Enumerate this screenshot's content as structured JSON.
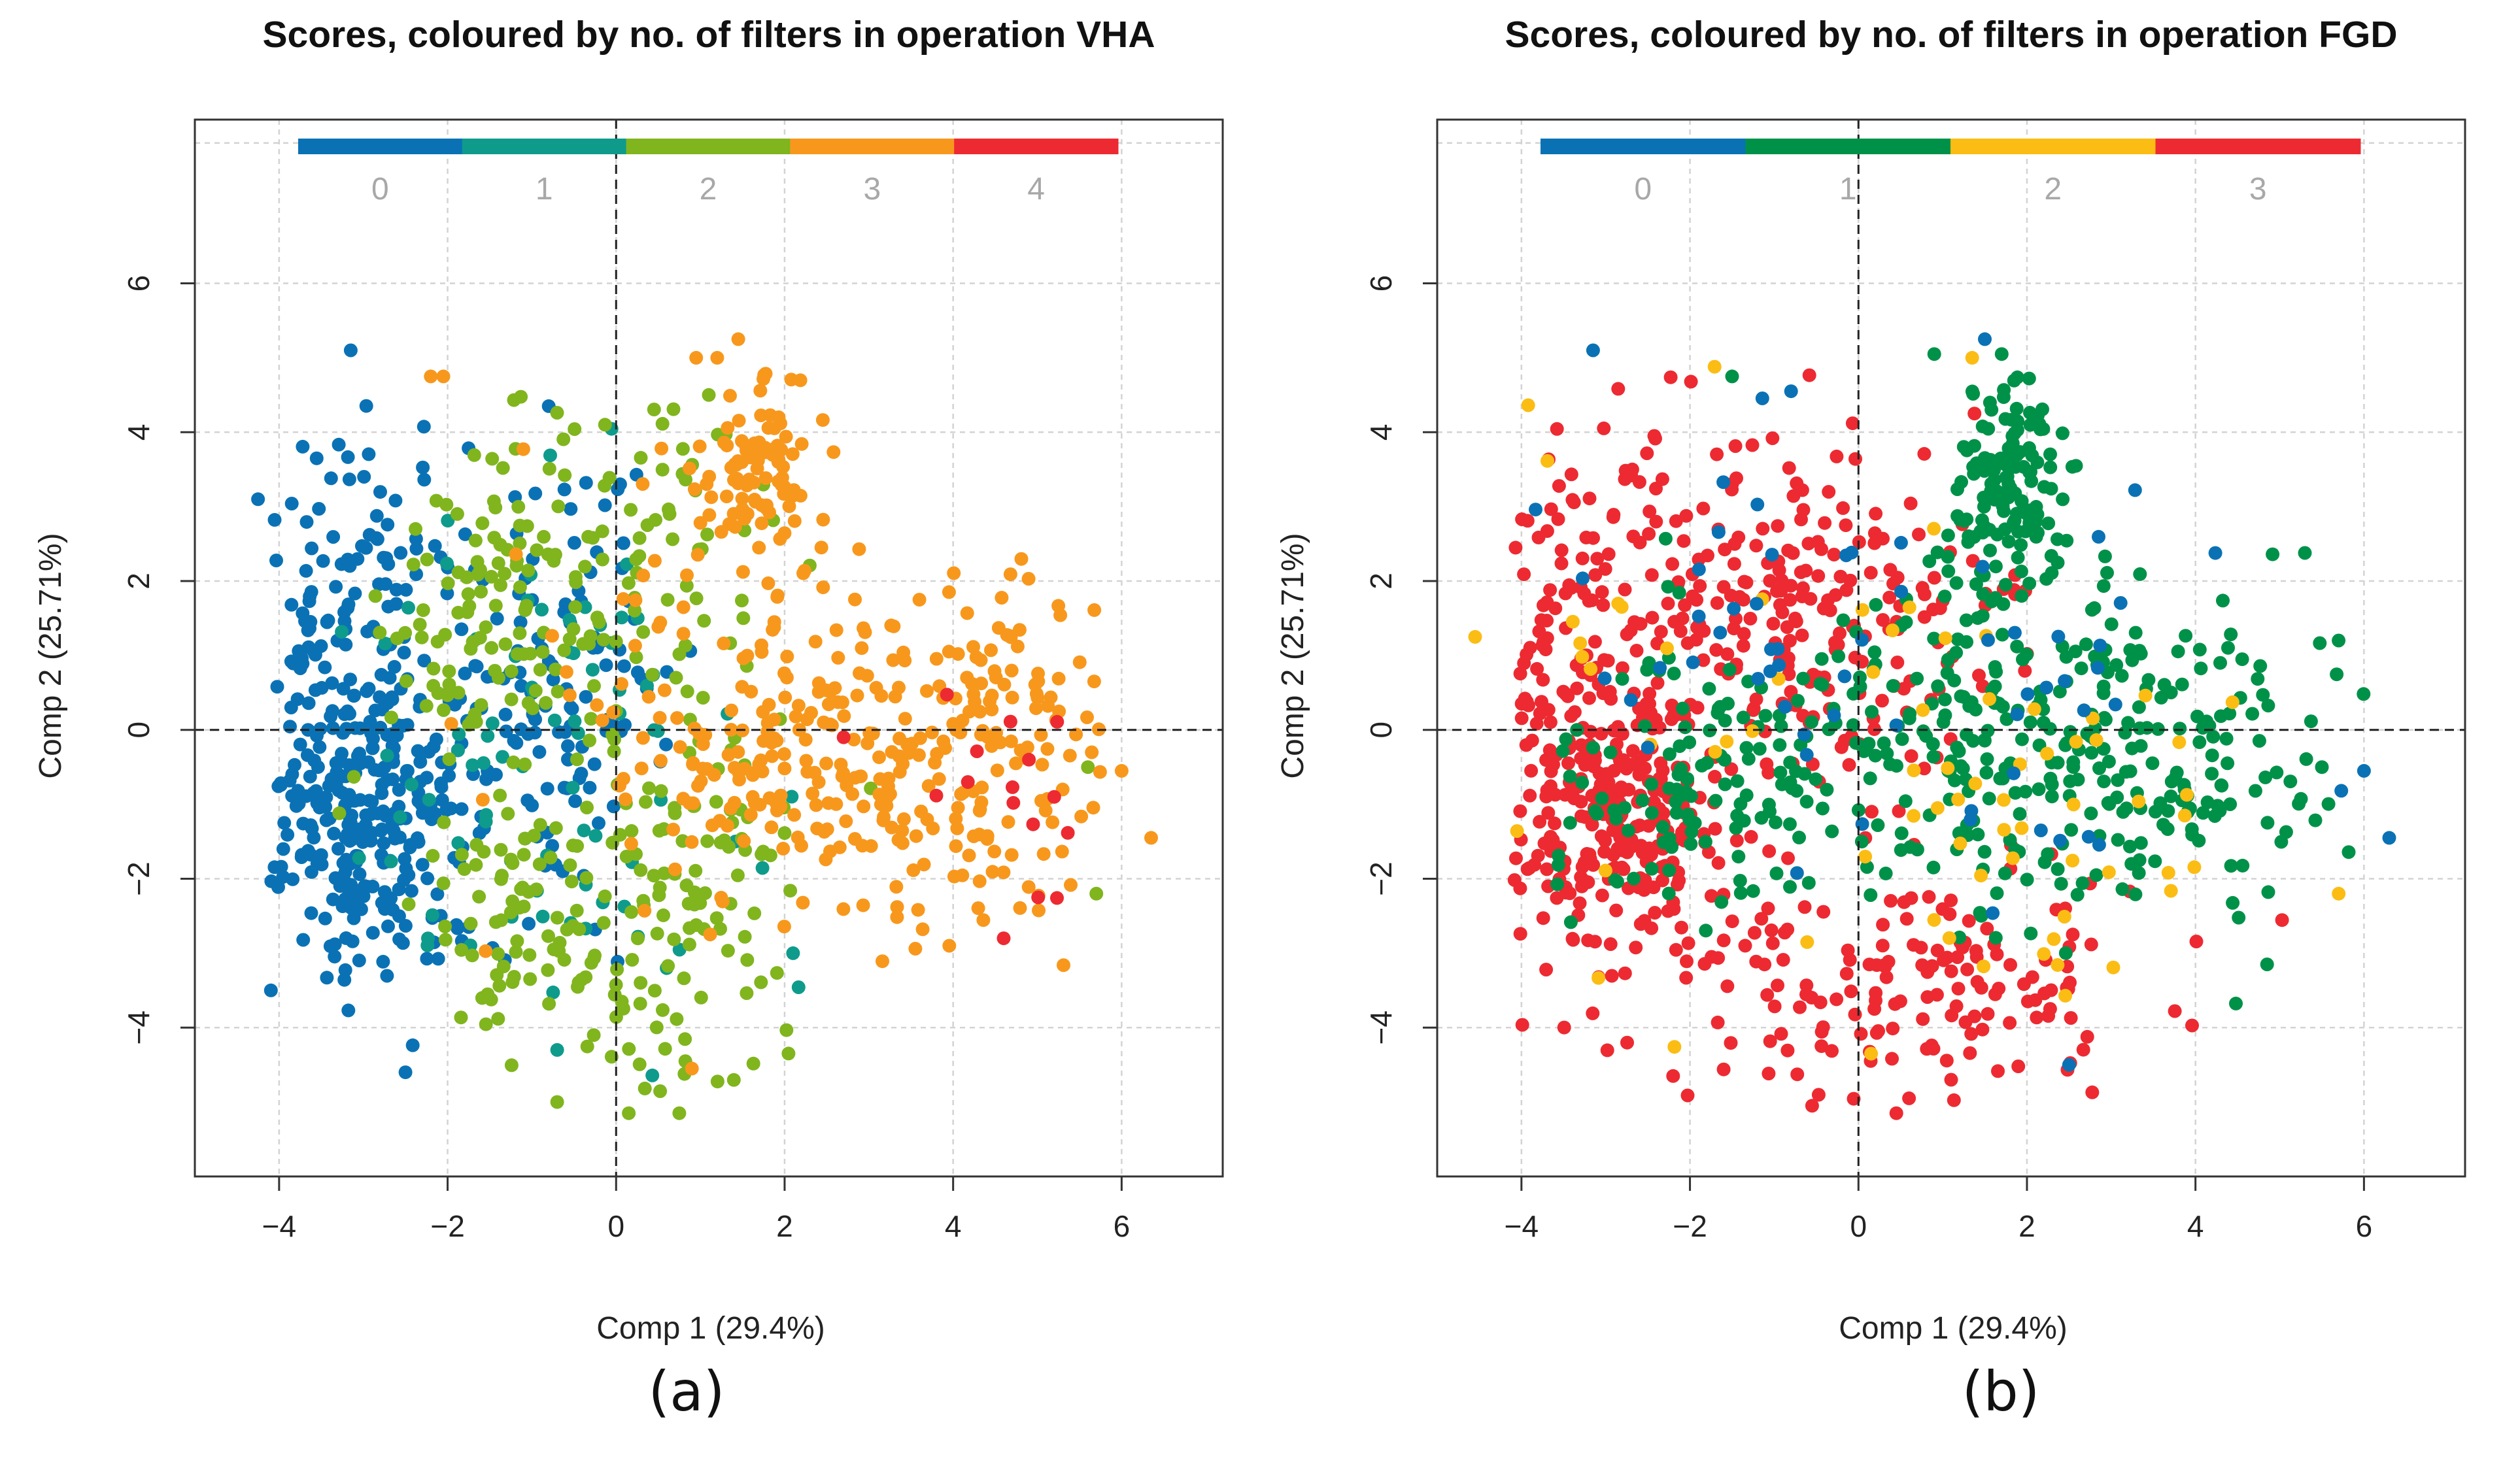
{
  "colors": {
    "blue": "#0a72b4",
    "teal": "#0e9b8c",
    "green": "#009149",
    "lime": "#80b51e",
    "orange": "#f7981d",
    "yellow": "#fbbd14",
    "red": "#ed2a31",
    "grid": "#d3d3d3",
    "axis": "#333333",
    "legend_text": "#a8a8a8"
  },
  "chart_data": [
    {
      "type": "scatter",
      "title": "Scores, coloured by no. of filters in operation VHA",
      "xlabel": "Comp 1 (29.4%)",
      "ylabel": "Comp 2 (25.71%)",
      "xlim": [
        -5.0,
        7.2
      ],
      "ylim": [
        -6.0,
        8.2
      ],
      "xticks": [
        -4,
        -2,
        0,
        2,
        4,
        6
      ],
      "yticks": [
        -4,
        -2,
        0,
        2,
        4,
        6
      ],
      "grid": true,
      "reference_lines": {
        "x": 0,
        "y": 0
      },
      "caption": "(a)",
      "legend": {
        "placement": "top",
        "entries": [
          {
            "label": "0",
            "color": "#0a72b4"
          },
          {
            "label": "1",
            "color": "#0e9b8c"
          },
          {
            "label": "2",
            "color": "#80b51e"
          },
          {
            "label": "3",
            "color": "#f7981d"
          },
          {
            "label": "4",
            "color": "#ed2a31"
          }
        ]
      },
      "series": [
        {
          "name": "0",
          "color": "#0a72b4",
          "count": 520,
          "clusters": [
            {
              "cx": -3.0,
              "cy": -1.3,
              "sx": 0.55,
              "sy": 0.9,
              "w": 0.45
            },
            {
              "cx": -3.1,
              "cy": 1.5,
              "sx": 0.55,
              "sy": 1.3,
              "w": 0.25
            },
            {
              "cx": -1.5,
              "cy": 0.2,
              "sx": 0.7,
              "sy": 1.3,
              "w": 0.18
            },
            {
              "cx": -0.4,
              "cy": 0.5,
              "sx": 0.5,
              "sy": 1.6,
              "w": 0.12
            }
          ],
          "points": [
            [
              -4.25,
              3.1
            ],
            [
              -3.15,
              5.1
            ],
            [
              -2.5,
              -4.6
            ],
            [
              -0.8,
              4.35
            ],
            [
              -3.95,
              -1.6
            ]
          ]
        },
        {
          "name": "1",
          "color": "#0e9b8c",
          "count": 80,
          "clusters": [
            {
              "cx": -1.3,
              "cy": -0.8,
              "sx": 0.9,
              "sy": 1.5,
              "w": 0.5
            },
            {
              "cx": -0.5,
              "cy": 1.0,
              "sx": 0.6,
              "sy": 1.5,
              "w": 0.3
            },
            {
              "cx": 0.9,
              "cy": -1.8,
              "sx": 0.9,
              "sy": 1.4,
              "w": 0.2
            }
          ],
          "points": [
            [
              0.6,
              -3.2
            ],
            [
              2.1,
              -3.0
            ],
            [
              -0.7,
              -4.3
            ]
          ]
        },
        {
          "name": "2",
          "color": "#80b51e",
          "count": 380,
          "clusters": [
            {
              "cx": -1.3,
              "cy": 1.6,
              "sx": 0.7,
              "sy": 1.3,
              "w": 0.35
            },
            {
              "cx": -1.2,
              "cy": -2.6,
              "sx": 0.55,
              "sy": 0.8,
              "w": 0.2
            },
            {
              "cx": 0.7,
              "cy": -2.5,
              "sx": 0.9,
              "sy": 1.3,
              "w": 0.3
            },
            {
              "cx": 0.5,
              "cy": 2.0,
              "sx": 0.7,
              "sy": 1.4,
              "w": 0.15
            }
          ],
          "points": [
            [
              -0.7,
              -5.0
            ],
            [
              0.15,
              -5.15
            ],
            [
              0.75,
              -5.15
            ],
            [
              1.1,
              4.5
            ],
            [
              5.7,
              -2.2
            ],
            [
              5.6,
              -0.5
            ]
          ]
        },
        {
          "name": "3",
          "color": "#f7981d",
          "count": 470,
          "clusters": [
            {
              "cx": 1.7,
              "cy": 3.4,
              "sx": 0.35,
              "sy": 0.65,
              "w": 0.22
            },
            {
              "cx": 2.8,
              "cy": -0.4,
              "sx": 1.3,
              "sy": 1.2,
              "w": 0.45
            },
            {
              "cx": 1.3,
              "cy": 0.4,
              "sx": 1.0,
              "sy": 1.3,
              "w": 0.15
            },
            {
              "cx": 4.1,
              "cy": 0.1,
              "sx": 0.9,
              "sy": 1.1,
              "w": 0.18
            }
          ],
          "points": [
            [
              -2.2,
              4.75
            ],
            [
              -2.05,
              4.75
            ],
            [
              1.45,
              5.25
            ],
            [
              1.2,
              5.0
            ],
            [
              0.95,
              5.0
            ],
            [
              6.35,
              -1.45
            ],
            [
              6.0,
              -0.55
            ],
            [
              5.3,
              -0.8
            ],
            [
              3.6,
              1.75
            ],
            [
              0.9,
              -4.55
            ]
          ]
        },
        {
          "name": "4",
          "color": "#ed2a31",
          "count": 12,
          "clusters": [
            {
              "cx": 4.6,
              "cy": -0.9,
              "sx": 0.5,
              "sy": 0.7,
              "w": 1.0
            }
          ],
          "points": [
            [
              4.6,
              -2.8
            ],
            [
              2.7,
              -0.1
            ],
            [
              4.9,
              -0.4
            ],
            [
              5.2,
              -0.9
            ]
          ]
        }
      ]
    },
    {
      "type": "scatter",
      "title": "Scores, coloured by no. of filters in operation FGD",
      "xlabel": "Comp 1 (29.4%)",
      "ylabel": "Comp 2 (25.71%)",
      "xlim": [
        -5.0,
        7.2
      ],
      "ylim": [
        -6.0,
        8.2
      ],
      "xticks": [
        -4,
        -2,
        0,
        2,
        4,
        6
      ],
      "yticks": [
        -4,
        -2,
        0,
        2,
        4,
        6
      ],
      "grid": true,
      "reference_lines": {
        "x": 0,
        "y": 0
      },
      "caption": "(b)",
      "legend": {
        "placement": "top",
        "entries": [
          {
            "label": "0",
            "color": "#0a72b4"
          },
          {
            "label": "1",
            "color": "#009149"
          },
          {
            "label": "2",
            "color": "#fbbd14"
          },
          {
            "label": "3",
            "color": "#ed2a31"
          }
        ]
      },
      "series": [
        {
          "name": "3",
          "color": "#ed2a31",
          "count": 760,
          "clusters": [
            {
              "cx": -2.9,
              "cy": -1.3,
              "sx": 0.6,
              "sy": 1.0,
              "w": 0.35
            },
            {
              "cx": -3.2,
              "cy": 1.5,
              "sx": 0.6,
              "sy": 1.3,
              "w": 0.15
            },
            {
              "cx": -1.0,
              "cy": 1.8,
              "sx": 0.9,
              "sy": 1.2,
              "w": 0.2
            },
            {
              "cx": 0.6,
              "cy": -3.3,
              "sx": 1.6,
              "sy": 0.8,
              "w": 0.22
            },
            {
              "cx": 0.3,
              "cy": 1.2,
              "sx": 0.8,
              "sy": 1.0,
              "w": 0.08
            }
          ],
          "points": [
            [
              -2.2,
              -4.65
            ],
            [
              -0.55,
              -5.05
            ],
            [
              0.45,
              -5.15
            ],
            [
              0.6,
              -4.95
            ],
            [
              1.1,
              -4.7
            ]
          ]
        },
        {
          "name": "1",
          "color": "#009149",
          "count": 600,
          "clusters": [
            {
              "cx": 1.8,
              "cy": 3.3,
              "sx": 0.35,
              "sy": 0.7,
              "w": 0.2
            },
            {
              "cx": 3.4,
              "cy": -0.3,
              "sx": 1.2,
              "sy": 1.1,
              "w": 0.35
            },
            {
              "cx": 1.2,
              "cy": 0.0,
              "sx": 1.1,
              "sy": 1.3,
              "w": 0.25
            },
            {
              "cx": -1.7,
              "cy": -0.6,
              "sx": 0.9,
              "sy": 1.0,
              "w": 0.2
            }
          ],
          "points": [
            [
              -1.5,
              4.75
            ],
            [
              1.7,
              5.05
            ],
            [
              0.9,
              5.05
            ],
            [
              4.85,
              -3.15
            ],
            [
              5.5,
              -0.5
            ]
          ]
        },
        {
          "name": "2",
          "color": "#fbbd14",
          "count": 70,
          "clusters": [
            {
              "cx": -0.8,
              "cy": 0.2,
              "sx": 1.6,
              "sy": 2.0,
              "w": 0.55
            },
            {
              "cx": 2.5,
              "cy": -1.4,
              "sx": 1.2,
              "sy": 1.4,
              "w": 0.45
            }
          ],
          "points": [
            [
              -4.55,
              1.25
            ],
            [
              5.7,
              -2.2
            ],
            [
              0.15,
              -4.35
            ],
            [
              1.35,
              5.0
            ]
          ]
        },
        {
          "name": "0",
          "color": "#0a72b4",
          "count": 60,
          "clusters": [
            {
              "cx": -1.2,
              "cy": 0.8,
              "sx": 1.3,
              "sy": 1.6,
              "w": 0.6
            },
            {
              "cx": 2.3,
              "cy": 0.5,
              "sx": 1.4,
              "sy": 1.6,
              "w": 0.4
            }
          ],
          "points": [
            [
              -3.15,
              5.1
            ],
            [
              1.5,
              5.25
            ],
            [
              6.3,
              -1.45
            ],
            [
              6.0,
              -0.55
            ],
            [
              -0.8,
              4.55
            ],
            [
              2.5,
              -4.5
            ]
          ]
        }
      ]
    }
  ]
}
